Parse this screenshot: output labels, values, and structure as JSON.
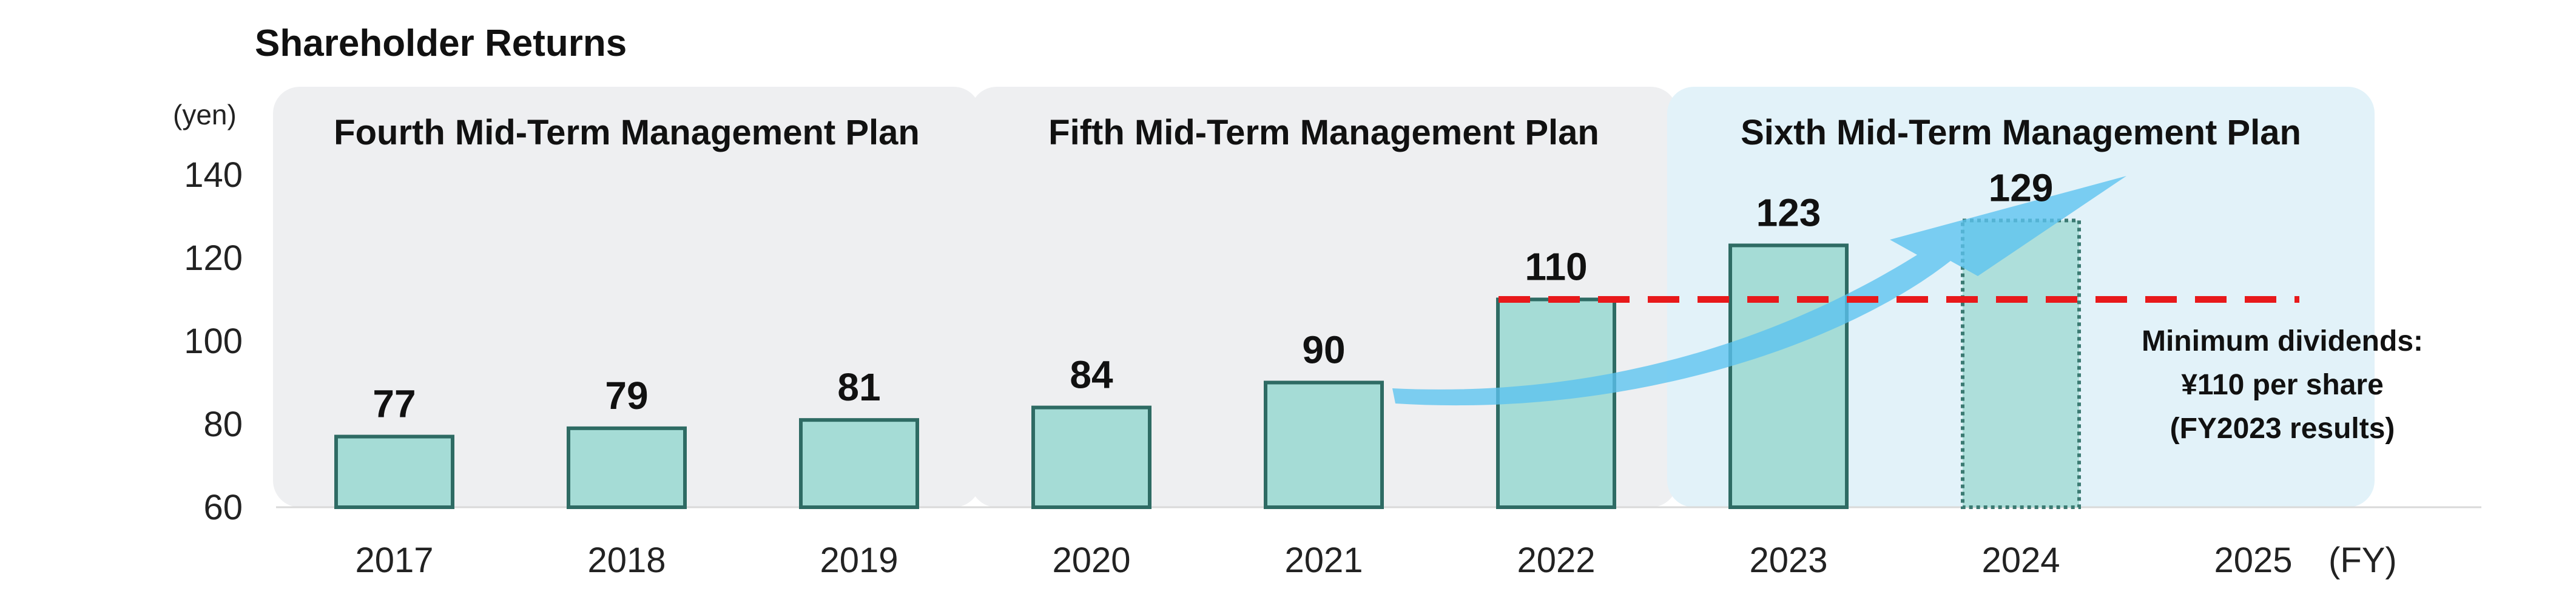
{
  "chart_data": {
    "type": "bar",
    "title": "Shareholder Returns",
    "ylabel": "(yen)",
    "xlabel": "(FY)",
    "categories": [
      "2017",
      "2018",
      "2019",
      "2020",
      "2021",
      "2022",
      "2023",
      "2024",
      "2025"
    ],
    "values": [
      77,
      79,
      81,
      84,
      90,
      110,
      123,
      129,
      null
    ],
    "data_labels": [
      "77",
      "79",
      "81",
      "84",
      "90",
      "110",
      "123",
      "129",
      ""
    ],
    "forecast_categories": [
      "2024"
    ],
    "ylim": [
      60,
      140
    ],
    "yticks": [
      "60",
      "80",
      "100",
      "120",
      "140"
    ],
    "grid": false,
    "plans": [
      {
        "label": "Fourth Mid-Term Management Plan",
        "categories": [
          "2017",
          "2018",
          "2019"
        ]
      },
      {
        "label": "Fifth Mid-Term Management Plan",
        "categories": [
          "2020",
          "2021",
          "2022"
        ]
      },
      {
        "label": "Sixth Mid-Term Management Plan",
        "categories": [
          "2023",
          "2024",
          "2025"
        ]
      }
    ],
    "reference_line": {
      "value": 110,
      "label_lines": [
        "Minimum dividends:",
        "¥110 per share",
        "(FY2023 results)"
      ]
    }
  },
  "colors": {
    "bar_fill": "#a5dcd6",
    "bar_stroke": "#2e6b64",
    "forecast_stroke": "#3b7a72",
    "plan_panel": "#eeeff1",
    "plan_panel_sixth": "#e2f2f9",
    "reference_line": "#e8191b",
    "trend_arrow": "#5bc3f0"
  }
}
